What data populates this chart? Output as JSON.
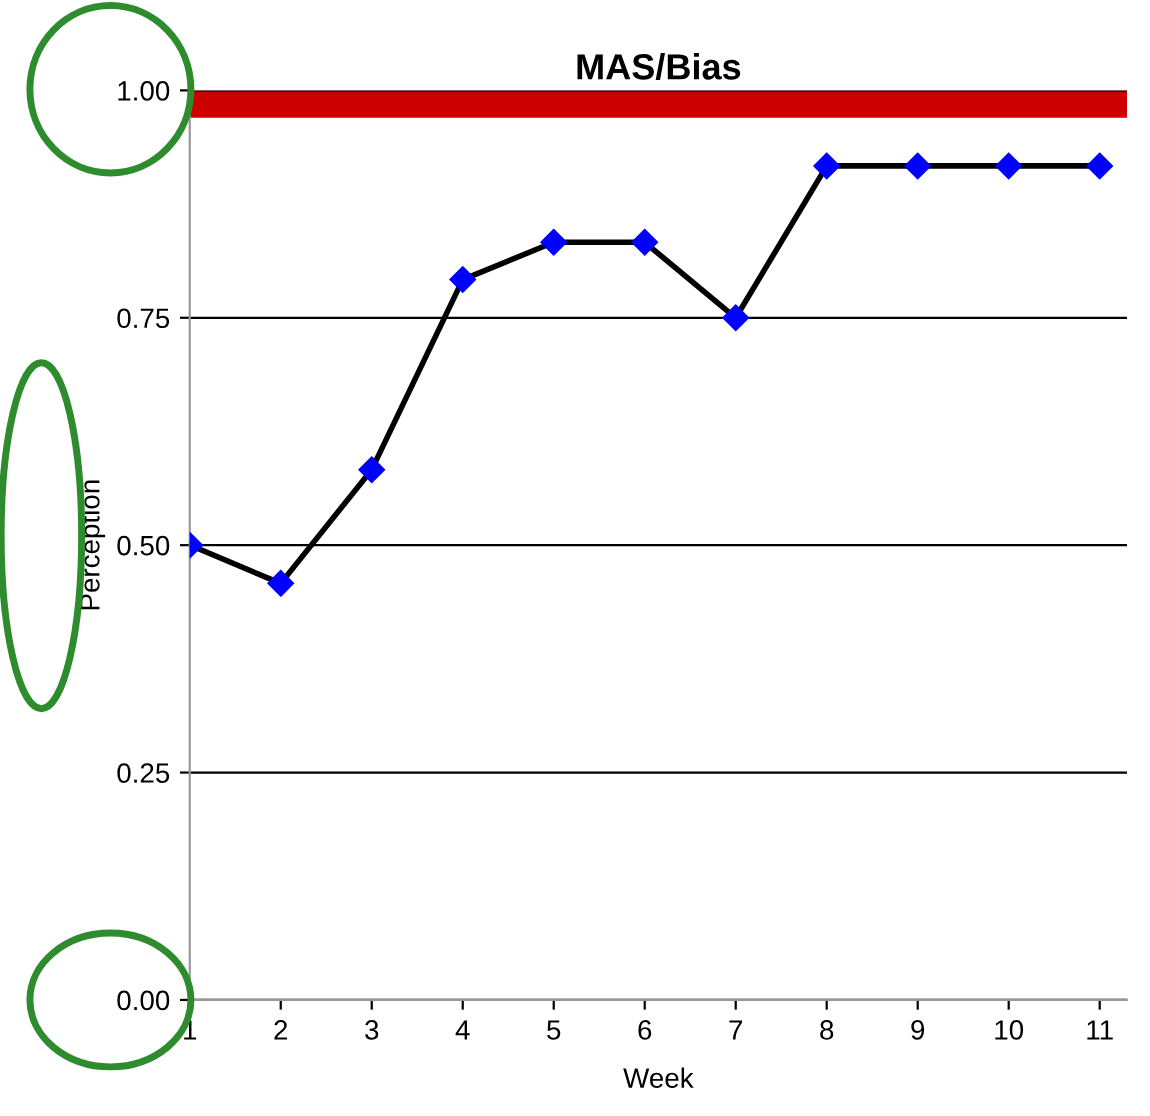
{
  "chart_data": {
    "type": "line",
    "title": "MAS/Bias",
    "xlabel": "Week",
    "ylabel": "Perception",
    "x": [
      1,
      2,
      3,
      4,
      5,
      6,
      7,
      8,
      9,
      10,
      11
    ],
    "series": [
      {
        "color": "#000000",
        "values": [
          0.5,
          0.458,
          0.583,
          0.792,
          0.833,
          0.833,
          0.75,
          0.917,
          0.917,
          0.917,
          0.917
        ]
      }
    ],
    "marker": "diamond",
    "xlim": [
      1,
      11.3
    ],
    "xticks": [
      1,
      2,
      3,
      4,
      5,
      6,
      7,
      8,
      9,
      10,
      11
    ],
    "ylim": [
      0,
      1
    ],
    "yticks": [
      {
        "value": 0,
        "label": "0.00"
      },
      {
        "value": 0.25,
        "label": "0.25"
      },
      {
        "value": 0.5,
        "label": "0.50"
      },
      {
        "value": 0.75,
        "label": "0.75"
      },
      {
        "value": 1,
        "label": "1.00"
      }
    ],
    "bands": [
      {
        "axis": "y",
        "from": 0.97,
        "to": 1.0,
        "color": "#cc0000"
      }
    ],
    "grid": "y"
  }
}
